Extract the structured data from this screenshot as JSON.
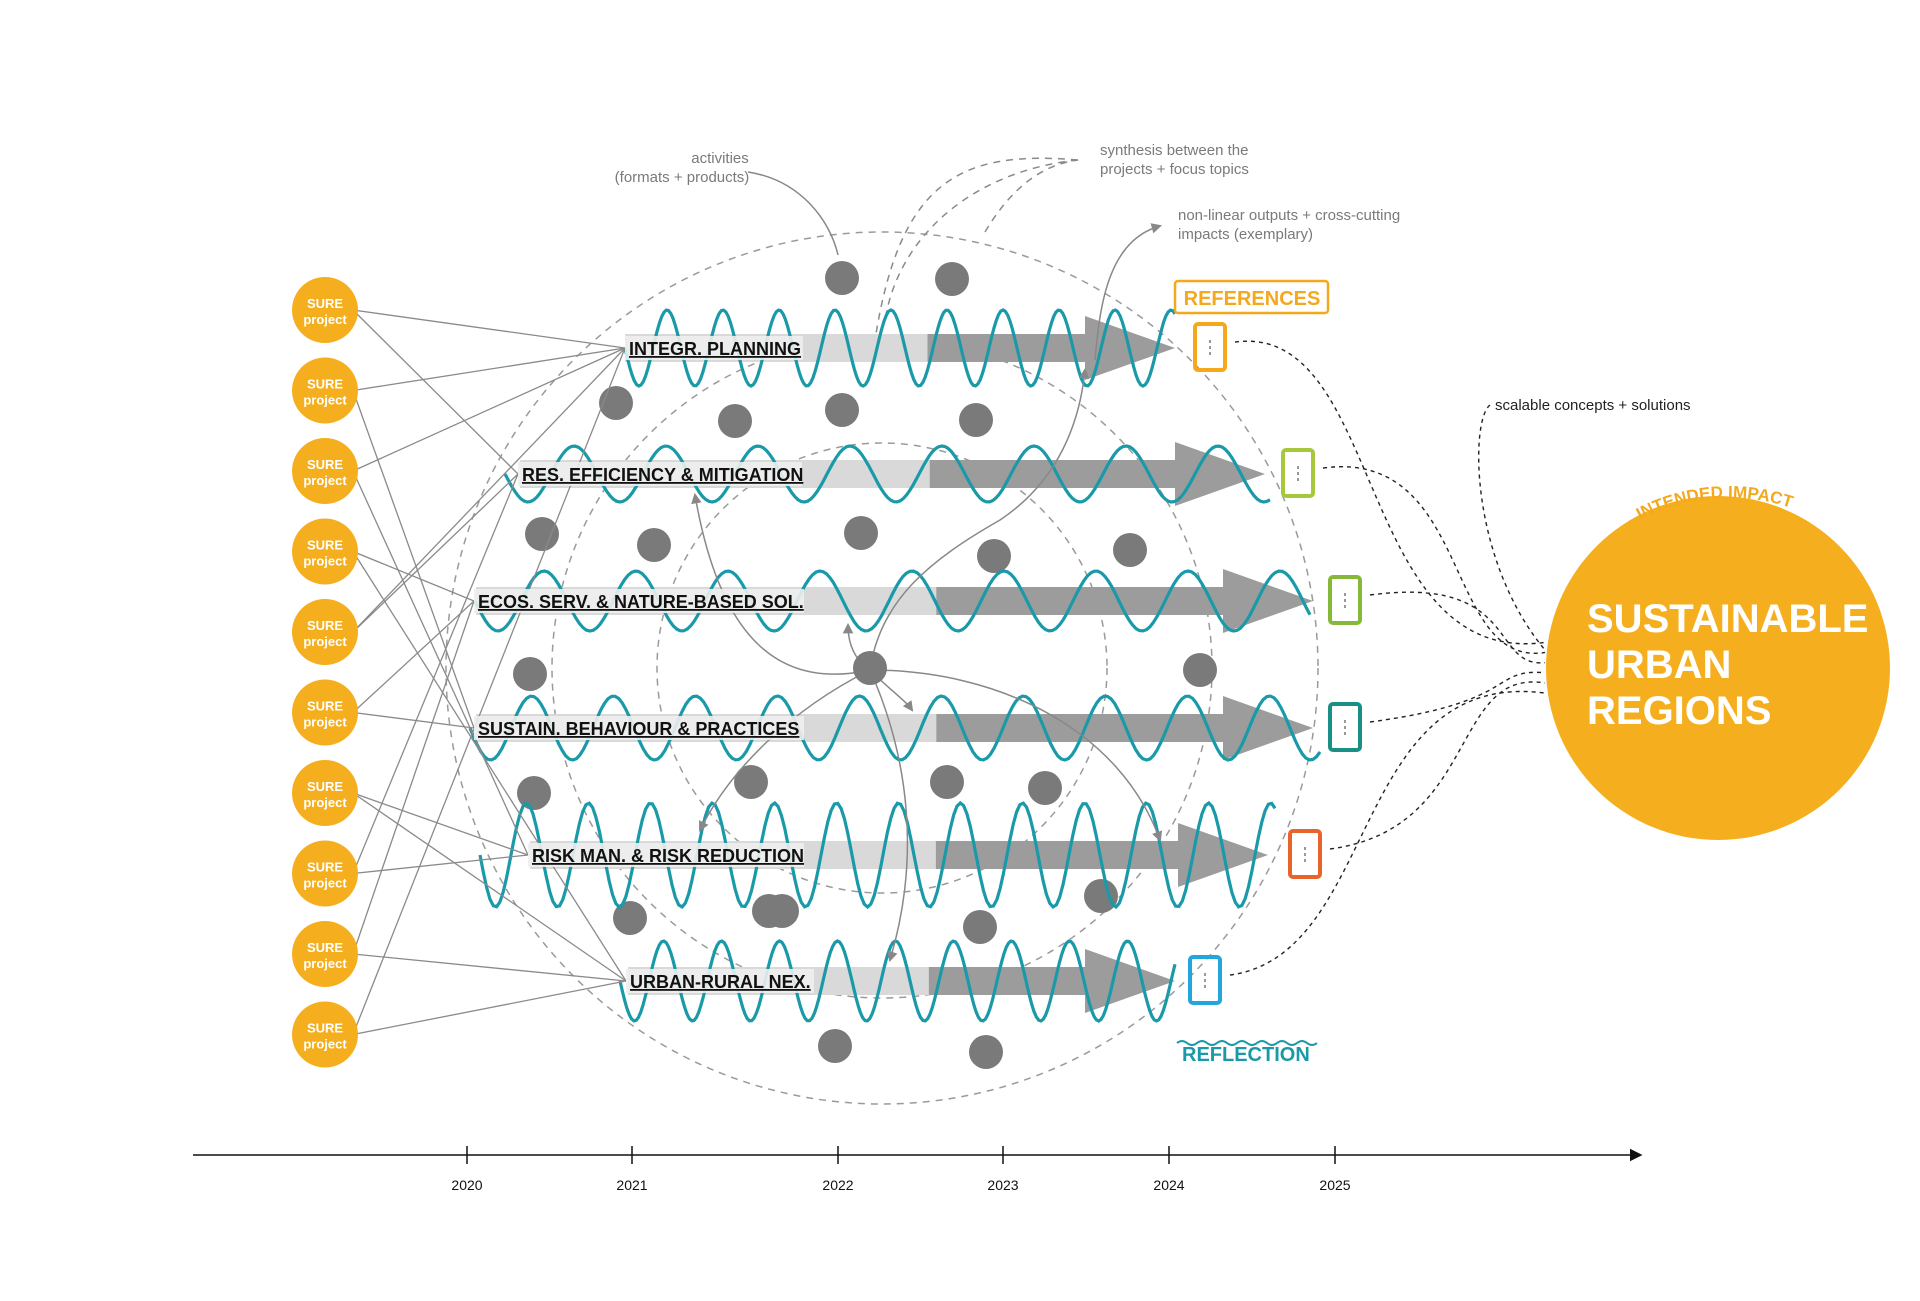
{
  "colors": {
    "project": "#f5af1e",
    "wave": "#1a9aa8",
    "dot": "#7a7a7a",
    "arrow_dark": "#9c9c9c",
    "arrow_light": "#d9d9d9",
    "impact": "#f5af1e",
    "references": "#f5a81c",
    "reflection": "#1a9aa8"
  },
  "projects": {
    "label_top": "SURE",
    "label_bottom": "project",
    "count": 10
  },
  "topics": [
    {
      "label": "INTEGR. PLANNING",
      "marker_color": "#f5a81c"
    },
    {
      "label": "RES. EFFICIENCY & MITIGATION",
      "marker_color": "#a6c83a"
    },
    {
      "label": "ECOS. SERV. & NATURE-BASED SOL.",
      "marker_color": "#86b83a"
    },
    {
      "label": "SUSTAIN. BEHAVIOUR & PRACTICES",
      "marker_color": "#198f86"
    },
    {
      "label": "RISK MAN. & RISK REDUCTION",
      "marker_color": "#e8642a"
    },
    {
      "label": "URBAN-RURAL NEX.",
      "marker_color": "#23a6dc"
    }
  ],
  "annotations": {
    "activities_line1": "activities",
    "activities_line2": "(formats + products)",
    "synthesis_line1": "synthesis between the",
    "synthesis_line2": "projects + focus topics",
    "nonlinear_line1": "non-linear outputs + cross-cutting",
    "nonlinear_line2": "impacts (exemplary)",
    "scalable": "scalable concepts + solutions"
  },
  "legend": {
    "references": "REFERENCES",
    "reflection": "REFLECTION"
  },
  "impact": {
    "arc_label": "INTENDED IMPACT",
    "line1": "SUSTAINABLE",
    "line2": "URBAN",
    "line3": "REGIONS"
  },
  "timeline": {
    "years": [
      "2020",
      "2021",
      "2022",
      "2023",
      "2024",
      "2025"
    ]
  }
}
